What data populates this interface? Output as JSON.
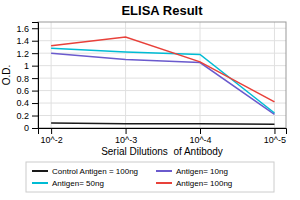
{
  "chart_data": {
    "type": "line",
    "title": "ELISA Result",
    "x_label": "Serial Dilutions  of Antibody",
    "y_label": "O.D.",
    "x": [
      0.01,
      0.001,
      0.0001,
      1e-05
    ],
    "series": [
      {
        "name": "Control Antigen = 100ng",
        "color": "#1a1a1a",
        "values": [
          0.08,
          0.07,
          0.07,
          0.06
        ]
      },
      {
        "name": "Antigen= 10ng",
        "color": "#6a5acd",
        "values": [
          1.2,
          1.1,
          1.05,
          0.22
        ]
      },
      {
        "name": "Antigen= 50ng",
        "color": "#00bcd4",
        "values": [
          1.28,
          1.22,
          1.18,
          0.24
        ]
      },
      {
        "name": "Antigen= 100ng",
        "color": "#e8413a",
        "values": [
          1.32,
          1.46,
          1.06,
          0.42
        ]
      }
    ],
    "log": "x",
    "xlim": [
      0.015,
      7e-06
    ],
    "xticks": [
      {
        "value": 0.01,
        "label": "10^-2"
      },
      {
        "value": 0.001,
        "label": "10^-3"
      },
      {
        "value": 0.0001,
        "label": "10^-4"
      },
      {
        "value": 1e-05,
        "label": "10^-5"
      }
    ],
    "ylim": [
      0,
      1.7
    ],
    "yticks": [
      0,
      0.2,
      0.4,
      0.6,
      0.8,
      1,
      1.2,
      1.4,
      1.6
    ],
    "grid": true,
    "legend": "bottom"
  }
}
